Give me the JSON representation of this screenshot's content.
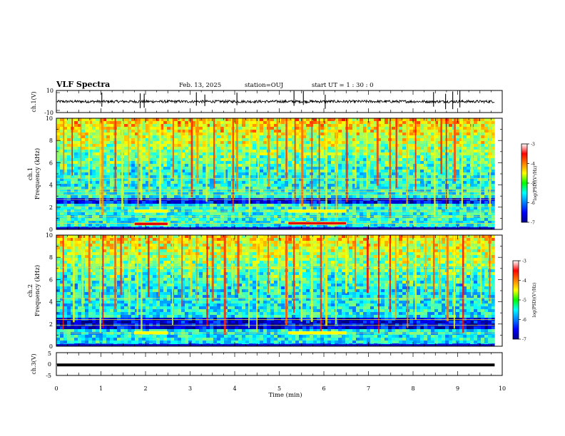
{
  "header": {
    "title": "VLF Spectra",
    "date": "Feb. 13, 2025",
    "station": "station=OUJ",
    "start": "start  UT =   1 : 30 : 0"
  },
  "chart_data": {
    "type": "heatmap",
    "time_axis": {
      "label": "Time  (min)",
      "range": [
        0,
        10
      ],
      "ticks": [
        "0",
        "1",
        "2",
        "3",
        "4",
        "5",
        "6",
        "7",
        "8",
        "9",
        "10"
      ],
      "data_end": 9.83
    },
    "panels": [
      {
        "id": "ch1-waveform",
        "type": "line",
        "ylabel": "ch.1(V)",
        "ylim": [
          -10,
          10
        ],
        "yticks": [
          "10",
          "-10"
        ],
        "baseline": 0,
        "noise_amplitude": 1.2,
        "spikes_min": [
          1.02,
          1.88,
          1.97,
          3.14,
          3.33,
          4.05,
          5.33,
          5.54,
          6.03,
          8.46,
          8.73,
          8.89,
          9.05
        ]
      },
      {
        "id": "ch1-spectrogram",
        "type": "heatmap",
        "ylabel": "ch.1",
        "ylabel2": "Frequency  (kHz)",
        "ylim": [
          0,
          10
        ],
        "yticks": [
          "0",
          "2",
          "4",
          "6",
          "8",
          "10"
        ],
        "colorbar": {
          "label": "log(PSD)(V²/Hz)",
          "range": [
            -7,
            -3
          ],
          "ticks": [
            "-3",
            "-4",
            "-5",
            "-6",
            "-7"
          ]
        },
        "background_logpsd": -5.4,
        "dark_band_khz": [
          2.2,
          2.8
        ],
        "tone_lines_khz": [
          0.55,
          1.15,
          1.65,
          2.05,
          2.7,
          3.1,
          3.4,
          3.6,
          4.6
        ],
        "events": [
          {
            "t_start": 1.75,
            "t_end": 2.5,
            "f_khz": 1.65,
            "logpsd": -4.5
          },
          {
            "t_start": 1.75,
            "t_end": 2.5,
            "f_khz": 0.5,
            "logpsd": -3.4
          },
          {
            "t_start": 5.2,
            "t_end": 6.5,
            "f_khz": 1.65,
            "logpsd": -4.5
          },
          {
            "t_start": 5.2,
            "t_end": 6.5,
            "f_khz": 0.55,
            "logpsd": -3.4
          }
        ]
      },
      {
        "id": "ch2-spectrogram",
        "type": "heatmap",
        "ylabel": "ch.2",
        "ylabel2": "Frequency  (kHz)",
        "ylim": [
          0,
          10
        ],
        "yticks": [
          "0",
          "2",
          "4",
          "6",
          "8",
          "10"
        ],
        "colorbar": {
          "label": "log(PSD)(V²/Hz)",
          "range": [
            -7,
            -3
          ],
          "ticks": [
            "-3",
            "-4",
            "-5",
            "-6",
            "-7"
          ]
        },
        "background_logpsd": -5.5,
        "dark_band_khz": [
          1.5,
          2.5
        ],
        "tone_lines_khz": [
          1.2,
          1.9,
          2.4,
          4.3,
          7.1
        ],
        "events": [
          {
            "t_start": 1.75,
            "t_end": 2.5,
            "f_khz": 1.2,
            "logpsd": -4.5
          },
          {
            "t_start": 5.2,
            "t_end": 6.5,
            "f_khz": 1.2,
            "logpsd": -4.5
          }
        ]
      },
      {
        "id": "ch3-waveform",
        "type": "line",
        "ylabel": "ch.3(V)",
        "ylim": [
          -5,
          5
        ],
        "yticks": [
          "5",
          "0",
          "-5"
        ],
        "baseline": -0.4
      }
    ],
    "sferic_times_min": [
      0.15,
      0.35,
      0.55,
      0.7,
      0.95,
      1.02,
      1.3,
      1.45,
      1.6,
      1.82,
      1.9,
      2.05,
      2.3,
      2.6,
      2.8,
      3.0,
      3.14,
      3.35,
      3.5,
      3.75,
      3.95,
      4.05,
      4.3,
      4.5,
      4.75,
      4.95,
      5.15,
      5.33,
      5.5,
      5.7,
      5.9,
      6.05,
      6.25,
      6.5,
      6.7,
      6.95,
      7.2,
      7.45,
      7.6,
      7.85,
      8.05,
      8.25,
      8.46,
      8.6,
      8.75,
      8.9,
      9.1,
      9.3,
      9.5,
      9.7
    ]
  }
}
